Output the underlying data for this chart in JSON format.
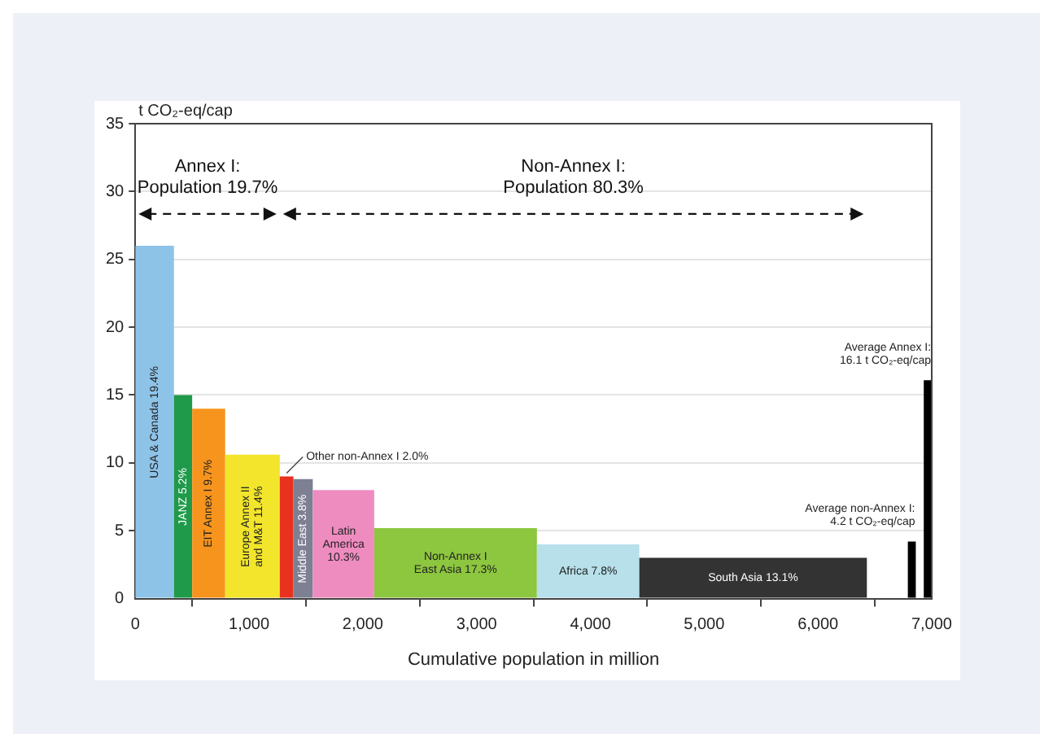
{
  "chart_data": {
    "type": "histogram",
    "ylabel": "t CO₂-eq/cap",
    "xlabel": "Cumulative population in million",
    "bins": [
      0,
      340,
      500,
      790,
      1270,
      1390,
      1560,
      2100,
      3530,
      4430,
      6430,
      6790,
      6860,
      6930,
      7000
    ],
    "values": [
      26,
      15,
      14,
      10.6,
      9.0,
      8.8,
      8.0,
      5.2,
      4.0,
      3.0,
      null,
      4.2,
      null,
      16.1
    ],
    "colors": [
      "#8ec3e8",
      "#1f9a4a",
      "#f7941d",
      "#f2e52b",
      "#e8311f",
      "#7d7f93",
      "#ee8cc0",
      "#8dc63f",
      "#b7e0ea",
      "#333333",
      null,
      "#000000",
      null,
      "#000000"
    ],
    "xlim": [
      0,
      7000
    ],
    "xticks": [
      0,
      {
        "value": 1000,
        "label": "1,000"
      },
      {
        "value": 2000,
        "label": "2,000"
      },
      {
        "value": 3000,
        "label": "3,000"
      },
      {
        "value": 4000,
        "label": "4,000"
      },
      {
        "value": 5000,
        "label": "5,000"
      },
      {
        "value": 6000,
        "label": "6,000"
      },
      {
        "value": 7000,
        "label": "7,000"
      }
    ],
    "ylim": [
      0,
      35
    ],
    "yticks": [
      0,
      5,
      10,
      15,
      20,
      25,
      30,
      35
    ],
    "grid": "y",
    "annotations": [
      "Annex I:\nPopulation 19.7%",
      "Non-Annex I:\nPopulation 80.3%",
      "USA & Canada 19.4%",
      "JANZ 5.2%",
      "EIT Annex I 9.7%",
      "Europe Annex II\nand M&T 11.4%",
      "Middle East 3.8%",
      "Latin\nAmerica\n10.3%",
      "Non-Annex I\nEast Asia 17.3%",
      "Africa 7.8%",
      "South Asia 13.1%",
      {
        "text": "Other non-Annex I 2.0%",
        "x": 1330,
        "y": 9.0
      },
      {
        "text": "Average non-Annex I:\n4.2 t CO₂-eq/cap",
        "x": 6825,
        "y": 4.2
      },
      {
        "text": "Average Annex I:\n16.1 t CO₂-eq/cap",
        "x": 6965,
        "y": 16.1
      }
    ]
  }
}
